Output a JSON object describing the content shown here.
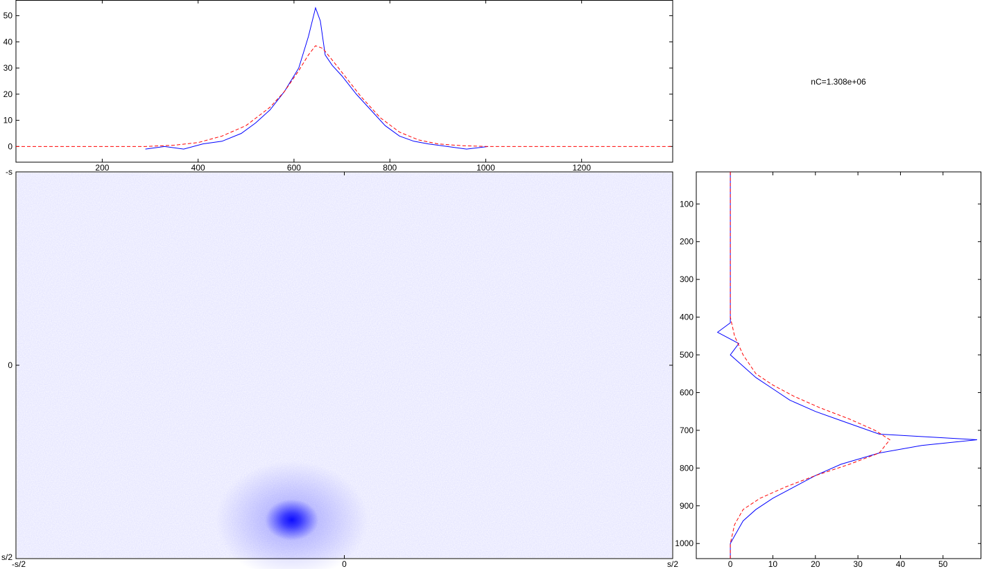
{
  "annotation": {
    "text": "nC=1.308e+06"
  },
  "chart_data": [
    {
      "type": "line",
      "panel": "top-profile",
      "xlim": [
        20,
        1390
      ],
      "ylim": [
        -6,
        56
      ],
      "x_ticks": [
        200,
        400,
        600,
        800,
        1000,
        1200
      ],
      "y_ticks": [
        0,
        10,
        20,
        30,
        40,
        50
      ],
      "grid": false,
      "series": [
        {
          "color": "#0000ff",
          "style": "solid",
          "x": [
            290,
            330,
            370,
            410,
            450,
            490,
            520,
            550,
            580,
            610,
            630,
            645,
            655,
            665,
            680,
            700,
            730,
            760,
            790,
            820,
            850,
            880,
            920,
            960,
            1005
          ],
          "y": [
            -1,
            0,
            -1,
            1,
            2,
            5,
            9,
            14,
            21,
            30,
            42,
            53,
            48,
            35,
            31,
            27,
            20,
            14,
            8,
            4,
            2,
            1,
            0,
            -1,
            0
          ]
        },
        {
          "color": "#ff0000",
          "style": "dashed",
          "x": [
            20,
            290,
            350,
            400,
            450,
            500,
            550,
            580,
            610,
            630,
            645,
            660,
            680,
            710,
            740,
            780,
            820,
            860,
            900,
            950,
            1005,
            1390
          ],
          "y": [
            0,
            0,
            0.5,
            1.5,
            4,
            8,
            15,
            21,
            29,
            35,
            38.5,
            37.5,
            33,
            26,
            19,
            11,
            5.5,
            2.5,
            1,
            0.3,
            0,
            0
          ]
        }
      ]
    },
    {
      "type": "heatmap",
      "panel": "main-image",
      "x_ticks": [
        "-s/2",
        "0",
        "s/2"
      ],
      "y_ticks": [
        "-s",
        "0",
        "s/2"
      ],
      "colormap": [
        "#ffffff",
        "#0000ff"
      ],
      "peak": {
        "x": -0.08,
        "y": 0.4
      }
    },
    {
      "type": "line",
      "panel": "right-profile",
      "orientation": "vertical",
      "xlim": [
        -8,
        59
      ],
      "ylim": [
        1040,
        15
      ],
      "x_ticks": [
        0,
        10,
        20,
        30,
        40,
        50
      ],
      "y_ticks": [
        100,
        200,
        300,
        400,
        500,
        600,
        700,
        800,
        900,
        1000
      ],
      "grid": false,
      "series": [
        {
          "color": "#0000ff",
          "style": "solid",
          "x": [
            0,
            0,
            -3,
            2,
            0,
            3,
            6,
            10,
            14,
            20,
            25,
            30,
            35,
            58,
            45,
            35,
            26,
            20,
            15,
            10,
            6,
            3,
            1,
            0,
            0
          ],
          "y": [
            15,
            415,
            440,
            470,
            500,
            530,
            560,
            590,
            620,
            650,
            670,
            690,
            710,
            725,
            740,
            760,
            790,
            820,
            850,
            880,
            910,
            940,
            980,
            1000,
            1040
          ]
        },
        {
          "color": "#ff0000",
          "style": "dashed",
          "x": [
            0,
            0,
            1,
            3,
            6,
            10,
            15,
            21,
            28,
            34,
            37.5,
            35,
            28,
            20,
            13,
            7,
            3,
            1,
            0,
            0
          ],
          "y": [
            15,
            400,
            450,
            500,
            550,
            580,
            610,
            640,
            670,
            700,
            725,
            760,
            790,
            820,
            850,
            880,
            910,
            950,
            1000,
            1040
          ]
        }
      ]
    }
  ]
}
